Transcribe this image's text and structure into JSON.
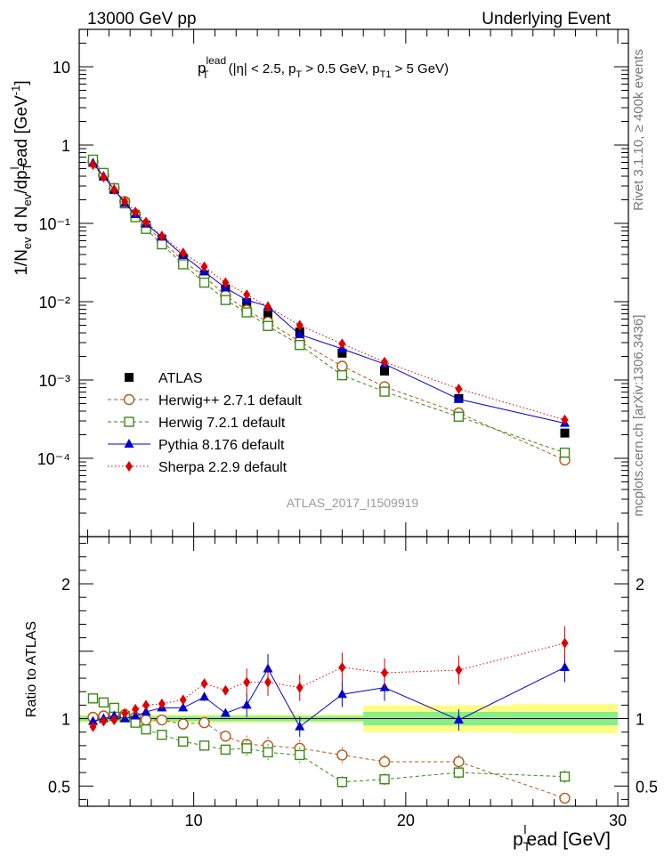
{
  "header": {
    "left": "13000 GeV pp",
    "right": "Underlying Event"
  },
  "side": {
    "rivet": "Rivet 3.1.10, ≥ 400k events",
    "site": "mcplots.cern.ch [arXiv:1306.3436]"
  },
  "watermark": "ATLAS_2017_I1509919",
  "plot_title": {
    "main": "p",
    "sup": "lead",
    "sub": "T",
    "rest1": " (|η| < 2.5, p",
    "sub2": "T",
    "rest2": " > 0.5 GeV, p",
    "sub3": "T1",
    "rest3": " > 5 GeV)"
  },
  "axes": {
    "ylabel_main": "1/N",
    "ylabel_parts": [
      "ev",
      " d N",
      "ev",
      "/dp",
      "T",
      "l",
      "ead [GeV",
      "-1",
      "]"
    ],
    "ylabel_ratio": "Ratio to ATLAS",
    "xlabel_p": "p",
    "xlabel_sub": "T",
    "xlabel_sup": "l",
    "xlabel_rest": "ead [GeV]"
  },
  "legend": [
    {
      "label": "ATLAS",
      "color": "#000000",
      "marker": "square-filled"
    },
    {
      "label": "Herwig++ 2.7.1 default",
      "color": "#b05a1a",
      "marker": "circle-open"
    },
    {
      "label": "Herwig 7.2.1 default",
      "color": "#3a8a18",
      "marker": "square-open"
    },
    {
      "label": "Pythia 8.176 default",
      "color": "#0000cc",
      "marker": "triangle"
    },
    {
      "label": "Sherpa 2.2.9 default",
      "color": "#dd0000",
      "marker": "diamond"
    }
  ],
  "chart_data": [
    {
      "type": "scatter",
      "yscale": "log",
      "xlim": [
        4.6,
        30.5
      ],
      "ylim": [
        1e-05,
        30
      ],
      "xticks": [
        10,
        20,
        30
      ],
      "yticks": [
        "10",
        "1",
        "10⁻¹",
        "10⁻²",
        "10⁻³",
        "10⁻⁴"
      ],
      "x": [
        5.25,
        5.75,
        6.25,
        6.75,
        7.25,
        7.75,
        8.5,
        9.5,
        10.5,
        11.5,
        12.5,
        13.5,
        15,
        17,
        19,
        22.5,
        27.5
      ],
      "series": [
        {
          "name": "ATLAS",
          "values": [
            0.6,
            0.4,
            0.27,
            0.185,
            0.13,
            0.095,
            0.063,
            0.036,
            0.022,
            0.0145,
            0.0097,
            0.0068,
            0.0041,
            0.0022,
            0.0013,
            0.00058,
            0.00021
          ]
        },
        {
          "name": "Herwig++ 2.7.1 default",
          "values": [
            0.61,
            0.41,
            0.28,
            0.19,
            0.13,
            0.093,
            0.06,
            0.033,
            0.021,
            0.012,
            0.0078,
            0.0055,
            0.0031,
            0.0015,
            0.00082,
            0.00038,
            9.5e-05
          ]
        },
        {
          "name": "Herwig 7.2.1 default",
          "values": [
            0.65,
            0.44,
            0.28,
            0.18,
            0.12,
            0.085,
            0.054,
            0.03,
            0.0175,
            0.0105,
            0.0073,
            0.0049,
            0.0028,
            0.00115,
            0.00071,
            0.00034,
            0.000118
          ]
        },
        {
          "name": "Pythia 8.176 default",
          "values": [
            0.59,
            0.4,
            0.27,
            0.18,
            0.13,
            0.098,
            0.067,
            0.039,
            0.024,
            0.015,
            0.0105,
            0.0087,
            0.0038,
            0.0025,
            0.0016,
            0.00057,
            0.00028
          ]
        },
        {
          "name": "Sherpa 2.2.9 default",
          "values": [
            0.56,
            0.39,
            0.27,
            0.19,
            0.14,
            0.104,
            0.069,
            0.042,
            0.028,
            0.0175,
            0.0123,
            0.0086,
            0.005,
            0.0029,
            0.0017,
            0.00077,
            0.00031
          ]
        }
      ]
    },
    {
      "type": "scatter",
      "xlim": [
        4.6,
        30.5
      ],
      "ylim": [
        0.35,
        2.35
      ],
      "xticks": [
        10,
        20,
        30
      ],
      "yticks": [
        0.5,
        1,
        2
      ],
      "ylabel": "Ratio to ATLAS",
      "x": [
        5.25,
        5.75,
        6.25,
        6.75,
        7.25,
        7.75,
        8.5,
        9.5,
        10.5,
        11.5,
        12.5,
        13.5,
        15,
        17,
        19,
        22.5,
        27.5
      ],
      "band_bins": [
        [
          4.6,
          18,
          0.02,
          0.03
        ],
        [
          18,
          25,
          0.05,
          0.1
        ],
        [
          25,
          30,
          0.05,
          0.11
        ]
      ],
      "series": [
        {
          "name": "Herwig++ 2.7.1 default",
          "values": [
            1.01,
            1.02,
            1.04,
            1.03,
            1.01,
            0.99,
            0.99,
            0.96,
            0.97,
            0.87,
            0.81,
            0.8,
            0.78,
            0.73,
            0.68,
            0.68,
            0.41
          ]
        },
        {
          "name": "Herwig 7.2.1 default",
          "values": [
            1.15,
            1.12,
            1.08,
            1.01,
            0.97,
            0.92,
            0.88,
            0.83,
            0.8,
            0.77,
            0.78,
            0.75,
            0.73,
            0.53,
            0.55,
            0.6,
            0.57
          ]
        },
        {
          "name": "Pythia 8.176 default",
          "values": [
            0.98,
            1.0,
            1.02,
            1.0,
            1.02,
            1.05,
            1.08,
            1.08,
            1.16,
            1.04,
            1.1,
            1.37,
            0.94,
            1.18,
            1.23,
            0.99,
            1.38
          ]
        },
        {
          "name": "Sherpa 2.2.9 default",
          "values": [
            0.94,
            0.98,
            0.99,
            1.04,
            1.07,
            1.1,
            1.11,
            1.14,
            1.26,
            1.21,
            1.27,
            1.27,
            1.23,
            1.38,
            1.34,
            1.36,
            1.56
          ]
        }
      ]
    }
  ]
}
